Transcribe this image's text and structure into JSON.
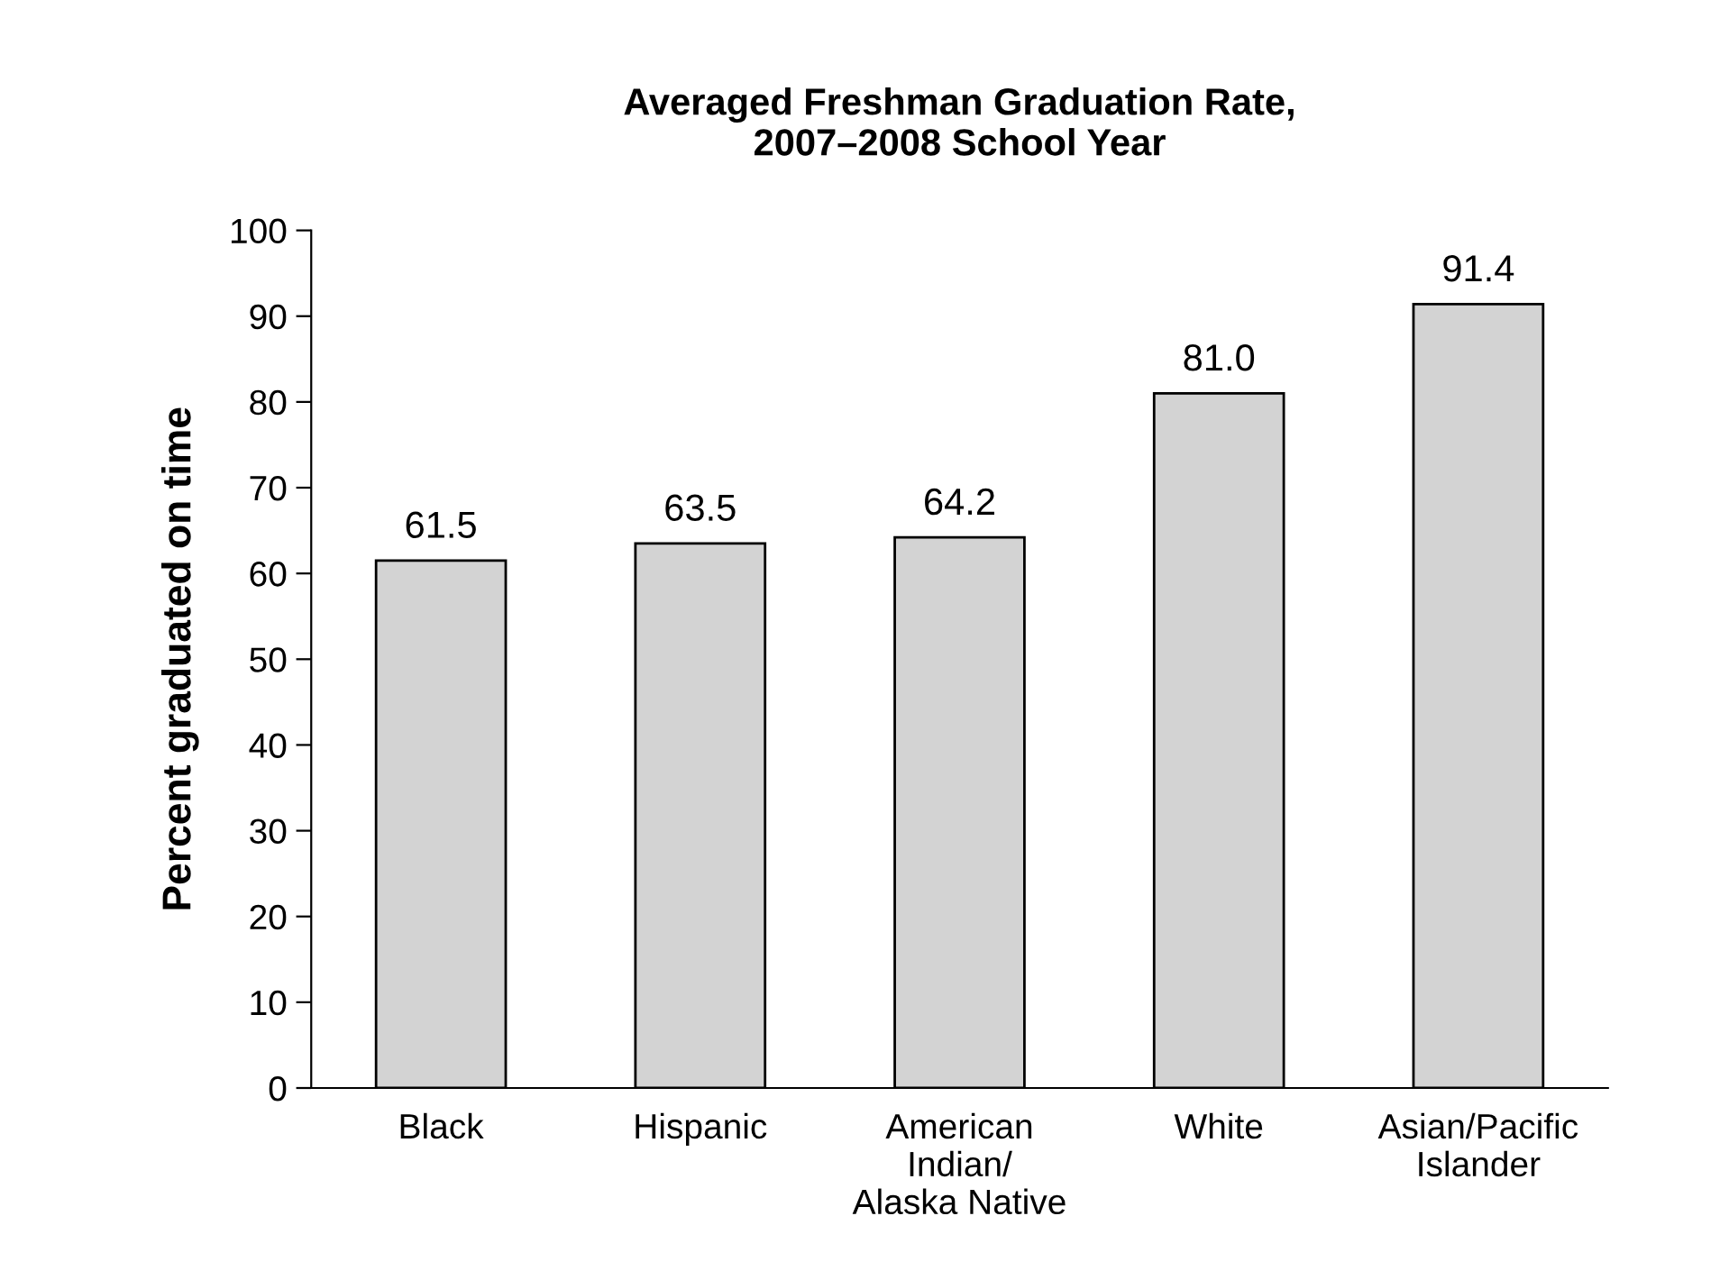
{
  "chart_data": {
    "type": "bar",
    "title": "Averaged Freshman Graduation Rate,\n2007–2008 School Year",
    "ylabel": "Percent graduated on time",
    "categories": [
      "Black",
      "Hispanic",
      "American\nIndian/\nAlaska Native",
      "White",
      "Asian/Pacific\nIslander"
    ],
    "values": [
      61.5,
      63.5,
      64.2,
      81.0,
      91.4
    ],
    "value_labels": [
      "61.5",
      "63.5",
      "64.2",
      "81.0",
      "91.4"
    ],
    "color": "#d3d3d3",
    "ylim": [
      0,
      100
    ],
    "yticks": [
      0,
      10,
      20,
      30,
      40,
      50,
      60,
      70,
      80,
      90,
      100
    ],
    "grid": false
  }
}
